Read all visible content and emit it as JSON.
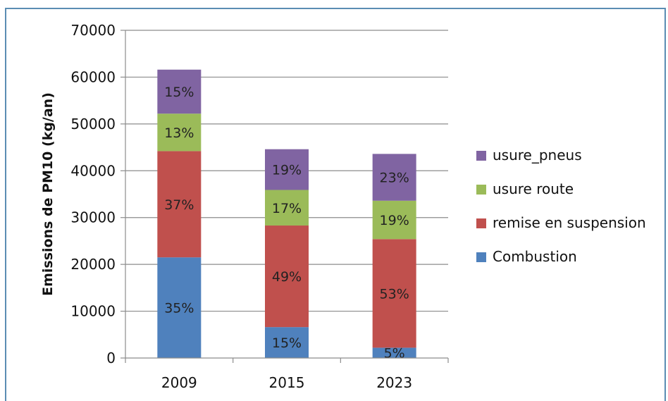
{
  "chart_data": {
    "type": "bar",
    "stacked": true,
    "categories": [
      "2009",
      "2015",
      "2023"
    ],
    "ylabel": "Emissions de PM10 (kg/an)",
    "ylim": [
      0,
      70000
    ],
    "yticks": [
      0,
      10000,
      20000,
      30000,
      40000,
      50000,
      60000,
      70000
    ],
    "grid": true,
    "legend_position": "right",
    "series": [
      {
        "name": "Combustion",
        "color": "#4f81bd",
        "values": [
          21500,
          6600,
          2200
        ],
        "labels": [
          "35%",
          "15%",
          "5%"
        ]
      },
      {
        "name": "remise en suspension",
        "color": "#c0504d",
        "values": [
          22700,
          21700,
          23200
        ],
        "labels": [
          "37%",
          "49%",
          "53%"
        ]
      },
      {
        "name": "usure route",
        "color": "#9bbb59",
        "values": [
          8000,
          7600,
          8200
        ],
        "labels": [
          "13%",
          "17%",
          "19%"
        ]
      },
      {
        "name": "usure_pneus",
        "color": "#8064a2",
        "values": [
          9400,
          8700,
          10000
        ],
        "labels": [
          "15%",
          "19%",
          "23%"
        ]
      }
    ]
  }
}
